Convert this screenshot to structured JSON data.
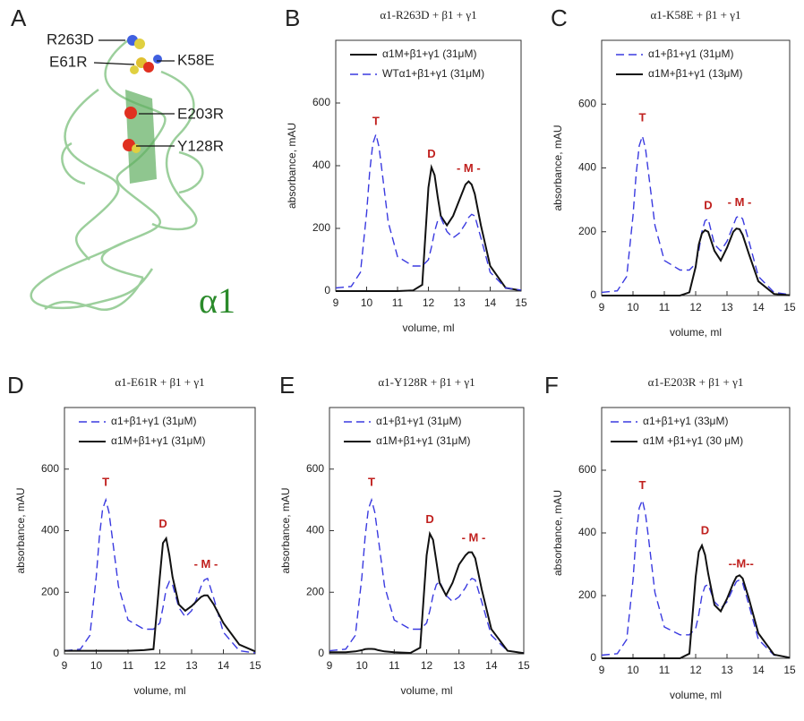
{
  "panel_a": {
    "letter": "A",
    "labels": [
      "R263D",
      "E61R",
      "K58E",
      "E203R",
      "Y128R"
    ],
    "chain": "α1"
  },
  "chart_data": [
    {
      "type": "line",
      "panel": "B",
      "title": "α1-R263D + β1 + γ1",
      "xlabel": "volume, ml",
      "ylabel": "absorbance, mAU",
      "xlim": [
        9,
        15
      ],
      "xticks": [
        9,
        10,
        11,
        12,
        13,
        14,
        15
      ],
      "ylim": [
        0,
        800
      ],
      "yticks": [
        0,
        200,
        400,
        600
      ],
      "legend": "upper right",
      "x": [
        9,
        9.5,
        9.8,
        10,
        10.1,
        10.2,
        10.3,
        10.4,
        10.5,
        10.7,
        11,
        11.5,
        11.8,
        12,
        12.1,
        12.2,
        12.3,
        12.4,
        12.6,
        12.8,
        13,
        13.2,
        13.3,
        13.4,
        13.5,
        13.7,
        14,
        14.5,
        15
      ],
      "series": [
        {
          "name": "α1M+β1+γ1 (31μM)",
          "color": "#111111",
          "linestyle": "solid",
          "values": [
            0,
            0,
            0,
            0,
            0,
            0,
            0,
            0,
            0,
            0,
            0,
            2,
            20,
            330,
            395,
            370,
            300,
            240,
            210,
            240,
            290,
            340,
            350,
            340,
            310,
            210,
            80,
            10,
            2
          ]
        },
        {
          "name": "WTα1+β1+γ1 (31μM)",
          "color": "#3a3ae0",
          "linestyle": "dashed",
          "values": [
            10,
            15,
            60,
            250,
            380,
            470,
            500,
            460,
            380,
            220,
            110,
            80,
            80,
            100,
            140,
            190,
            225,
            235,
            190,
            170,
            185,
            215,
            235,
            245,
            240,
            170,
            60,
            10,
            3
          ]
        }
      ],
      "annotations": [
        {
          "text": "T",
          "x": 10.3,
          "y": 540
        },
        {
          "text": "D",
          "x": 12.1,
          "y": 435
        },
        {
          "text": "- M -",
          "x": 13.3,
          "y": 390
        }
      ]
    },
    {
      "type": "line",
      "panel": "C",
      "title": "α1-K58E + β1 + γ1",
      "xlabel": "volume, ml",
      "ylabel": "absorbance, mAU",
      "xlim": [
        9,
        15
      ],
      "xticks": [
        9,
        10,
        11,
        12,
        13,
        14,
        15
      ],
      "ylim": [
        0,
        800
      ],
      "yticks": [
        0,
        200,
        400,
        600
      ],
      "legend": "upper right",
      "x": [
        9,
        9.5,
        9.8,
        10,
        10.1,
        10.2,
        10.3,
        10.4,
        10.5,
        10.7,
        11,
        11.5,
        11.8,
        12,
        12.1,
        12.2,
        12.3,
        12.4,
        12.6,
        12.8,
        13,
        13.2,
        13.3,
        13.4,
        13.5,
        13.7,
        14,
        14.5,
        15
      ],
      "series": [
        {
          "name": "α1+β1+γ1 (31μM)",
          "color": "#3a3ae0",
          "linestyle": "dashed",
          "values": [
            10,
            15,
            60,
            250,
            380,
            470,
            500,
            460,
            380,
            220,
            110,
            80,
            80,
            100,
            140,
            200,
            235,
            240,
            160,
            140,
            170,
            220,
            245,
            250,
            240,
            170,
            60,
            10,
            3
          ]
        },
        {
          "name": "α1M+β1+γ1 (13μM)",
          "color": "#111111",
          "linestyle": "solid",
          "values": [
            0,
            0,
            0,
            0,
            0,
            0,
            0,
            0,
            0,
            0,
            0,
            0,
            10,
            90,
            160,
            195,
            205,
            200,
            140,
            110,
            150,
            200,
            210,
            208,
            190,
            130,
            45,
            5,
            1
          ]
        }
      ],
      "annotations": [
        {
          "text": "T",
          "x": 10.3,
          "y": 555
        },
        {
          "text": "D",
          "x": 12.4,
          "y": 280
        },
        {
          "text": "- M -",
          "x": 13.4,
          "y": 290
        }
      ]
    },
    {
      "type": "line",
      "panel": "D",
      "title": "α1-E61R + β1 + γ1",
      "xlabel": "volume, ml",
      "ylabel": "absorbance, mAU",
      "xlim": [
        9,
        15
      ],
      "xticks": [
        9,
        10,
        11,
        12,
        13,
        14,
        15
      ],
      "ylim": [
        0,
        800
      ],
      "yticks": [
        0,
        200,
        400,
        600
      ],
      "legend": "upper right",
      "x": [
        9,
        9.5,
        9.8,
        10,
        10.1,
        10.2,
        10.3,
        10.4,
        10.5,
        10.7,
        11,
        11.5,
        11.8,
        12,
        12.1,
        12.2,
        12.3,
        12.4,
        12.6,
        12.8,
        13,
        13.2,
        13.3,
        13.4,
        13.5,
        13.7,
        14,
        14.5,
        15
      ],
      "series": [
        {
          "name": "α1+β1+γ1 (31μM)",
          "color": "#3a3ae0",
          "linestyle": "dashed",
          "values": [
            10,
            15,
            60,
            250,
            380,
            470,
            500,
            460,
            380,
            220,
            110,
            80,
            80,
            100,
            150,
            210,
            235,
            225,
            150,
            120,
            140,
            190,
            220,
            240,
            245,
            180,
            70,
            10,
            3
          ]
        },
        {
          "name": "α1M+β1+γ1 (31μM)",
          "color": "#111111",
          "linestyle": "solid",
          "values": [
            10,
            10,
            10,
            10,
            10,
            10,
            10,
            10,
            10,
            10,
            10,
            12,
            15,
            250,
            360,
            375,
            320,
            250,
            160,
            140,
            155,
            175,
            185,
            190,
            190,
            160,
            100,
            30,
            8
          ]
        }
      ],
      "annotations": [
        {
          "text": "T",
          "x": 10.3,
          "y": 555
        },
        {
          "text": "D",
          "x": 12.1,
          "y": 420
        },
        {
          "text": "- M -",
          "x": 13.45,
          "y": 290
        }
      ]
    },
    {
      "type": "line",
      "panel": "E",
      "title": "α1-Y128R + β1 + γ1",
      "xlabel": "volume, ml",
      "ylabel": "absorbance, mAU",
      "xlim": [
        9,
        15
      ],
      "xticks": [
        9,
        10,
        11,
        12,
        13,
        14,
        15
      ],
      "ylim": [
        0,
        800
      ],
      "yticks": [
        0,
        200,
        400,
        600
      ],
      "legend": "upper right",
      "x": [
        9,
        9.5,
        9.8,
        10,
        10.1,
        10.2,
        10.3,
        10.4,
        10.5,
        10.7,
        11,
        11.5,
        11.8,
        12,
        12.1,
        12.2,
        12.3,
        12.4,
        12.6,
        12.8,
        13,
        13.2,
        13.3,
        13.4,
        13.5,
        13.7,
        14,
        14.5,
        15
      ],
      "series": [
        {
          "name": "α1+β1+γ1 (31μM)",
          "color": "#3a3ae0",
          "linestyle": "dashed",
          "values": [
            10,
            15,
            60,
            250,
            380,
            470,
            500,
            460,
            380,
            220,
            110,
            80,
            80,
            100,
            140,
            190,
            225,
            235,
            190,
            170,
            185,
            215,
            235,
            245,
            240,
            170,
            60,
            10,
            3
          ]
        },
        {
          "name": "α1M+β1+γ1 (31μM)",
          "color": "#111111",
          "linestyle": "solid",
          "values": [
            5,
            5,
            8,
            12,
            15,
            16,
            16,
            15,
            12,
            8,
            5,
            3,
            20,
            320,
            390,
            370,
            300,
            230,
            190,
            230,
            290,
            320,
            330,
            330,
            310,
            210,
            80,
            10,
            2
          ]
        }
      ],
      "annotations": [
        {
          "text": "T",
          "x": 10.3,
          "y": 555
        },
        {
          "text": "D",
          "x": 12.1,
          "y": 435
        },
        {
          "text": "- M -",
          "x": 13.45,
          "y": 375
        }
      ]
    },
    {
      "type": "line",
      "panel": "F",
      "title": "α1-E203R + β1 + γ1",
      "xlabel": "volume, ml",
      "ylabel": "absorbance, mAU",
      "xlim": [
        9,
        15
      ],
      "xticks": [
        9,
        10,
        11,
        12,
        13,
        14,
        15
      ],
      "ylim": [
        0,
        800
      ],
      "yticks": [
        0,
        200,
        400,
        600
      ],
      "legend": "upper left",
      "x": [
        9,
        9.5,
        9.8,
        10,
        10.1,
        10.2,
        10.3,
        10.4,
        10.5,
        10.7,
        11,
        11.5,
        11.8,
        12,
        12.1,
        12.2,
        12.3,
        12.4,
        12.6,
        12.8,
        13,
        13.2,
        13.3,
        13.4,
        13.5,
        13.7,
        14,
        14.5,
        15
      ],
      "series": [
        {
          "name": "α1+β1+γ1 (33μM)",
          "color": "#3a3ae0",
          "linestyle": "dashed",
          "values": [
            10,
            15,
            60,
            250,
            390,
            480,
            505,
            460,
            380,
            210,
            100,
            75,
            75,
            95,
            140,
            200,
            230,
            235,
            180,
            160,
            180,
            225,
            245,
            250,
            240,
            170,
            60,
            10,
            3
          ]
        },
        {
          "name": "α1M +β1+γ1 (30 μM)",
          "color": "#111111",
          "linestyle": "solid",
          "values": [
            0,
            0,
            0,
            0,
            0,
            0,
            0,
            0,
            0,
            0,
            0,
            0,
            15,
            260,
            340,
            360,
            330,
            270,
            170,
            150,
            190,
            240,
            260,
            265,
            255,
            190,
            80,
            12,
            2
          ]
        }
      ],
      "annotations": [
        {
          "text": "T",
          "x": 10.3,
          "y": 550
        },
        {
          "text": "D",
          "x": 12.3,
          "y": 405
        },
        {
          "text": "--M--",
          "x": 13.45,
          "y": 300
        }
      ]
    }
  ]
}
